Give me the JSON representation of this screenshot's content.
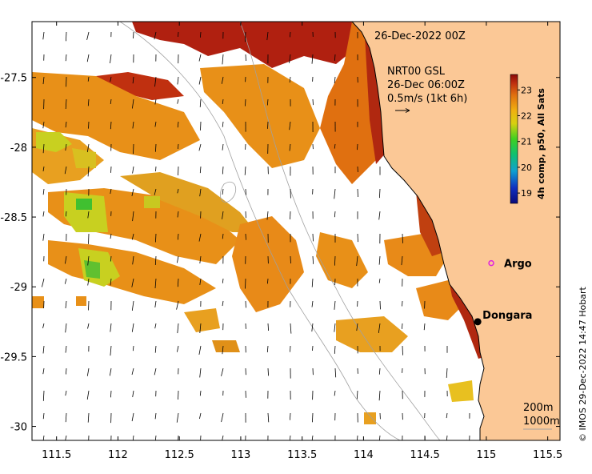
{
  "map": {
    "date_label": "26-Dec-2022 00Z",
    "current_label": {
      "line1": "NRT00 GSL",
      "line2": "26-Dec 06:00Z",
      "line3": "0.5m/s (1kt 6h)"
    },
    "places": [
      {
        "name": "Argo",
        "lon": 115.04,
        "lat": -28.83,
        "marker": "argo"
      },
      {
        "name": "Dongara",
        "lon": 114.93,
        "lat": -29.25,
        "marker": "town"
      }
    ],
    "contours": {
      "label1": "200m",
      "label2": "1000m"
    },
    "credit": "© IMOS 29-Dec-2022 14:47 Hobart",
    "x_axis": {
      "min": 111.3,
      "max": 115.6,
      "ticks": [
        111.5,
        112,
        112.5,
        113,
        113.5,
        114,
        114.5,
        115,
        115.5
      ],
      "tick_labels": [
        "111.5",
        "112",
        "112.5",
        "113",
        "113.5",
        "114",
        "114.5",
        "115",
        "115.5"
      ]
    },
    "y_axis": {
      "min": -30.1,
      "max": -27.1,
      "ticks": [
        -27.5,
        -28,
        -28.5,
        -29,
        -29.5,
        -30
      ],
      "tick_labels": [
        "-27.5",
        "-28",
        "-28.5",
        "-29",
        "-29.5",
        "-30"
      ]
    },
    "colorbar": {
      "title": "4h comp, p50, All Sats",
      "min": 18.6,
      "max": 23.6,
      "ticks": [
        19,
        20,
        21,
        22,
        23
      ],
      "tick_labels": [
        "19",
        "20",
        "21",
        "22",
        "23"
      ]
    },
    "colors": {
      "land": "#fbc896",
      "coast": "#000000",
      "contour": "#a0a0a0",
      "argo": "#e020e0"
    }
  }
}
